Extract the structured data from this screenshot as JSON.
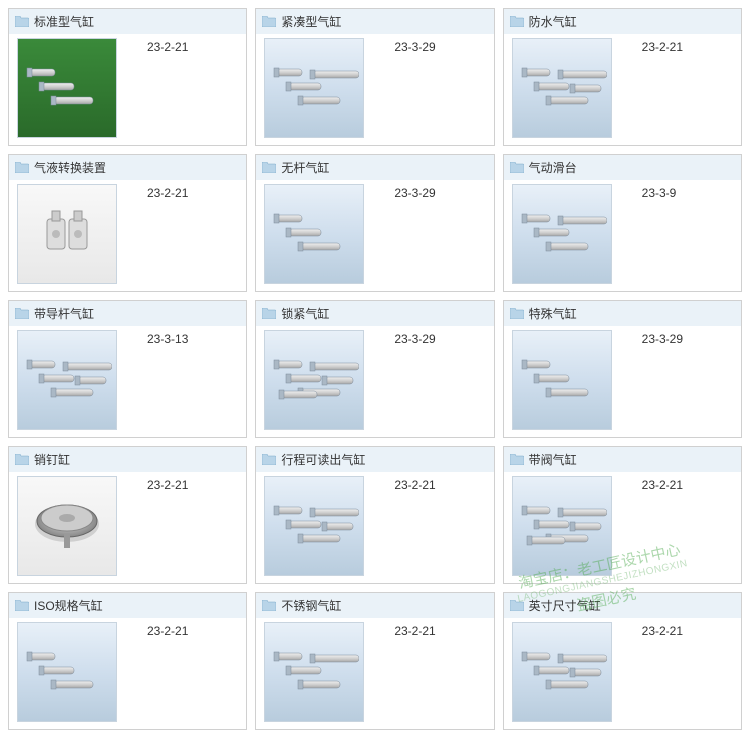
{
  "grid": {
    "columns": 3,
    "card_border": "#d0d0d0",
    "header_bg": "#eaf2f8",
    "thumb_border": "#c8d4df",
    "thumb_gradient": [
      "#e8f0f8",
      "#cfdeed",
      "#b8ccdd"
    ],
    "font_size_title": 12,
    "font_size_code": 12,
    "text_color": "#333333"
  },
  "items": [
    {
      "title": "标准型气缸",
      "code": "23-2-21",
      "thumb_variant": "green"
    },
    {
      "title": "紧凑型气缸",
      "code": "23-3-29",
      "thumb_variant": "blue"
    },
    {
      "title": "防水气缸",
      "code": "23-2-21",
      "thumb_variant": "blue"
    },
    {
      "title": "气液转换装置",
      "code": "23-2-21",
      "thumb_variant": "white"
    },
    {
      "title": "无杆气缸",
      "code": "23-3-29",
      "thumb_variant": "blue"
    },
    {
      "title": "气动滑台",
      "code": "23-3-9",
      "thumb_variant": "blue"
    },
    {
      "title": "带导杆气缸",
      "code": "23-3-13",
      "thumb_variant": "blue"
    },
    {
      "title": "锁紧气缸",
      "code": "23-3-29",
      "thumb_variant": "blue"
    },
    {
      "title": "特殊气缸",
      "code": "23-3-29",
      "thumb_variant": "blue"
    },
    {
      "title": "销钉缸",
      "code": "23-2-21",
      "thumb_variant": "white"
    },
    {
      "title": "行程可读出气缸",
      "code": "23-2-21",
      "thumb_variant": "blue"
    },
    {
      "title": "带阀气缸",
      "code": "23-2-21",
      "thumb_variant": "blue"
    },
    {
      "title": "ISO规格气缸",
      "code": "23-2-21",
      "thumb_variant": "blue"
    },
    {
      "title": "不锈钢气缸",
      "code": "23-2-21",
      "thumb_variant": "blue"
    },
    {
      "title": "英寸尺寸气缸",
      "code": "23-2-21",
      "thumb_variant": "blue"
    }
  ],
  "watermark": {
    "line1": "淘宝店：老工匠设计中心",
    "line2": "LAOGONGJIANGSHEJIZHONGXIN",
    "line3": "盗图必究",
    "color_main": "#4aa84a",
    "color_sub": "#7abb7a",
    "rotation_deg": -12,
    "opacity": 0.45
  }
}
